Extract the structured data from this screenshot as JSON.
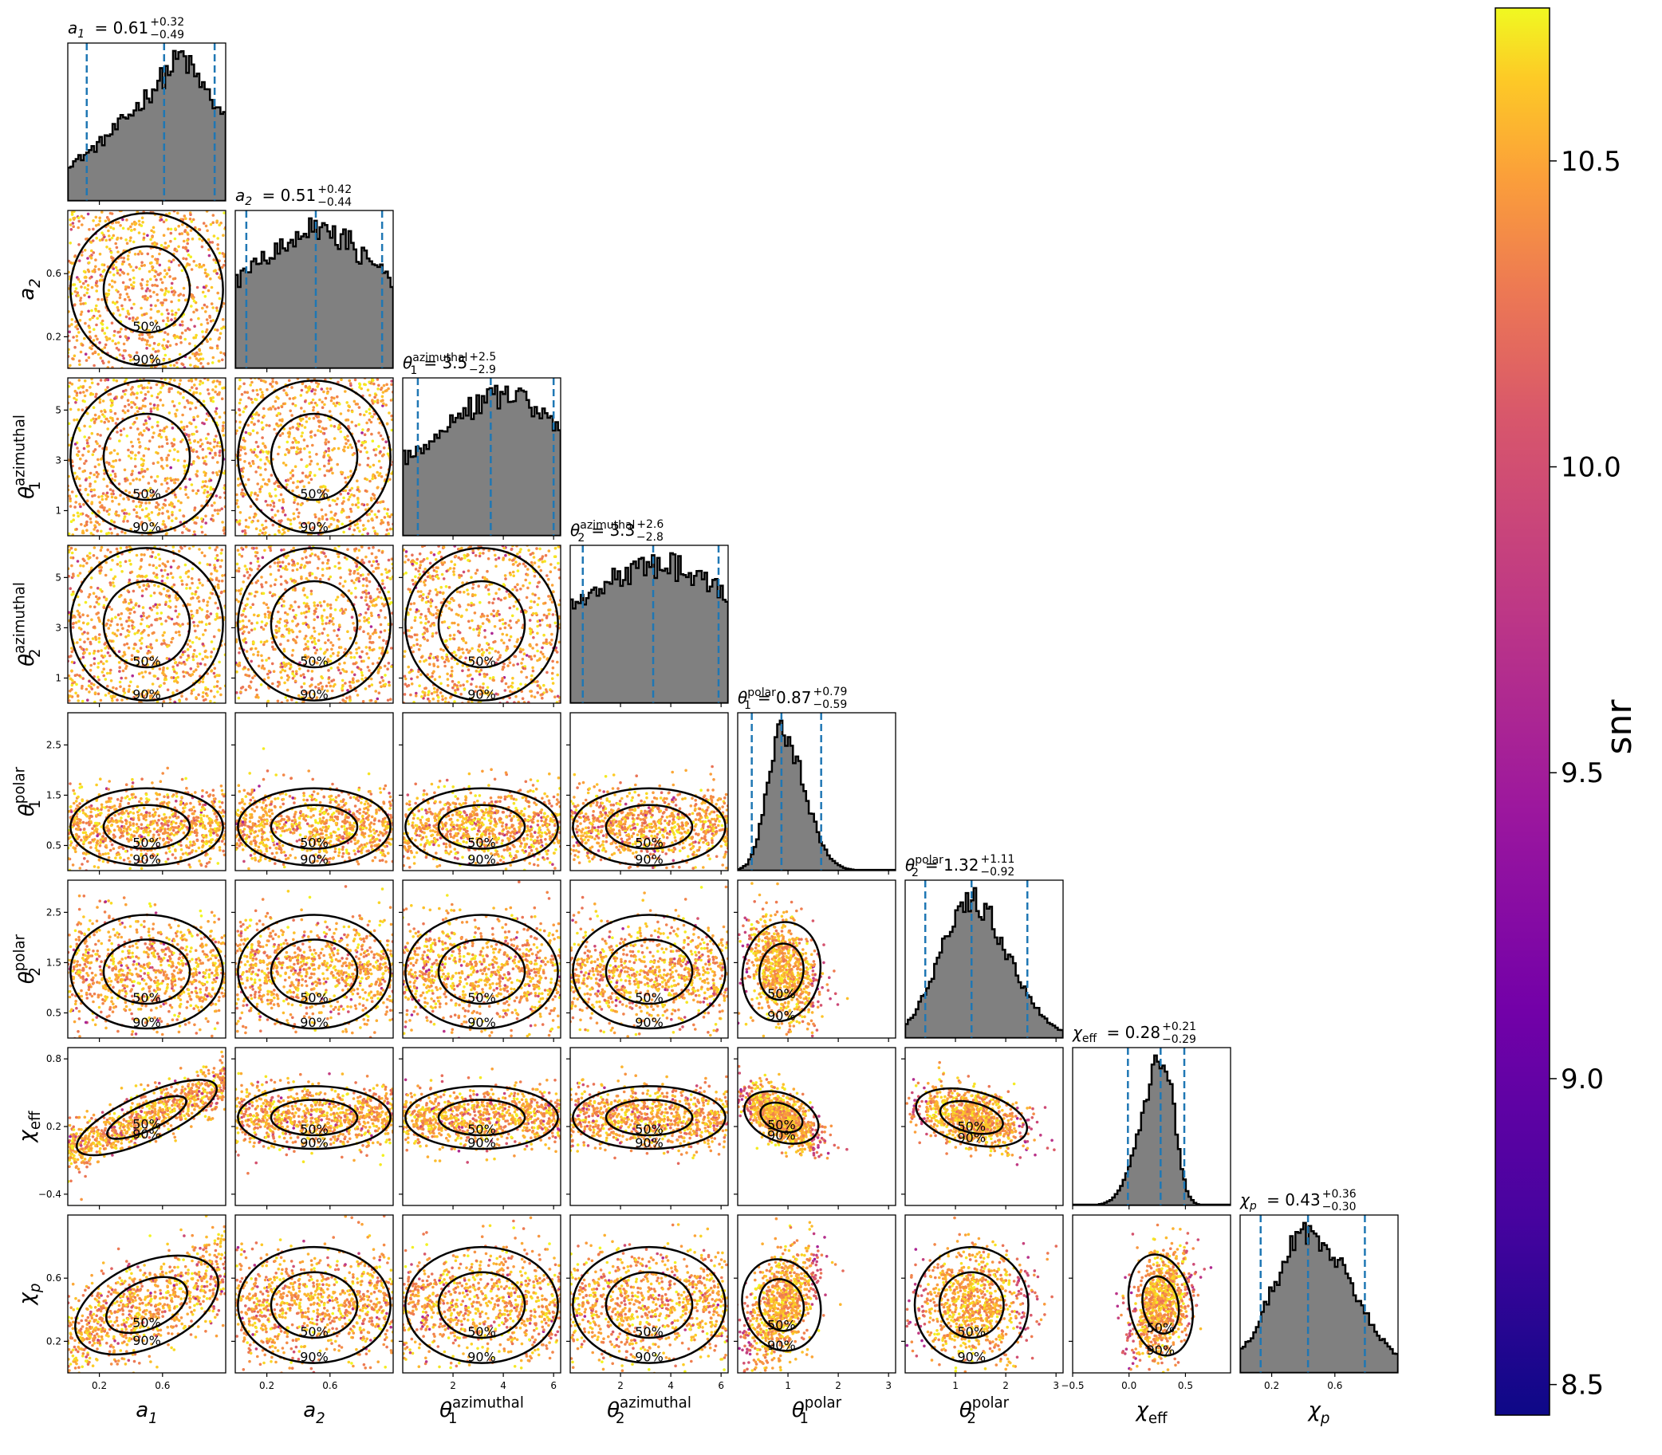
{
  "chart_data": {
    "type": "scatter",
    "variables": [
      {
        "key": "a1",
        "label": "a",
        "sub": "1",
        "sup": "",
        "median": "0.61",
        "plus": "+0.32",
        "minus": "−0.49",
        "range": [
          0.0,
          1.0
        ],
        "ticks": [
          {
            "v": 0.2,
            "t": "0.2"
          },
          {
            "v": 0.6,
            "t": "0.6"
          }
        ],
        "q": [
          0.12,
          0.61,
          0.93
        ],
        "dist": {
          "type": "ramp",
          "peak": 0.72,
          "low": 0.25
        }
      },
      {
        "key": "a2",
        "label": "a",
        "sub": "2",
        "sup": "",
        "median": "0.51",
        "plus": "+0.42",
        "minus": "−0.44",
        "range": [
          0.0,
          1.0
        ],
        "ticks": [
          {
            "v": 0.2,
            "t": "0.2"
          },
          {
            "v": 0.6,
            "t": "0.6"
          }
        ],
        "q": [
          0.07,
          0.51,
          0.93
        ],
        "dist": {
          "type": "plateau",
          "peak": 0.5,
          "low": 0.3
        }
      },
      {
        "key": "th1az",
        "label": "θ",
        "sub": "1",
        "sup": "azimuthal",
        "median": "3.5",
        "plus": "+2.5",
        "minus": "−2.9",
        "range": [
          0.0,
          6.28
        ],
        "ticks": [
          {
            "v": 2,
            "t": "2"
          },
          {
            "v": 4,
            "t": "4"
          },
          {
            "v": 6,
            "t": "6"
          }
        ],
        "q": [
          0.6,
          3.5,
          6.0
        ],
        "dist": {
          "type": "plateau",
          "peak": 4.0,
          "low": 0.4
        }
      },
      {
        "key": "th2az",
        "label": "θ",
        "sub": "2",
        "sup": "azimuthal",
        "median": "3.3",
        "plus": "+2.6",
        "minus": "−2.8",
        "range": [
          0.0,
          6.28
        ],
        "ticks": [
          {
            "v": 2,
            "t": "2"
          },
          {
            "v": 4,
            "t": "4"
          },
          {
            "v": 6,
            "t": "6"
          }
        ],
        "q": [
          0.5,
          3.3,
          5.9
        ],
        "dist": {
          "type": "plateau",
          "peak": 3.5,
          "low": 0.55
        }
      },
      {
        "key": "th1pol",
        "label": "θ",
        "sub": "1",
        "sup": "polar",
        "median": "0.87",
        "plus": "+0.79",
        "minus": "−0.59",
        "range": [
          0.0,
          3.14
        ],
        "ticks": [
          {
            "v": 1,
            "t": "1"
          },
          {
            "v": 2,
            "t": "2"
          },
          {
            "v": 3,
            "t": "3"
          }
        ],
        "q": [
          0.28,
          0.87,
          1.66
        ],
        "dist": {
          "type": "skew",
          "peak": 0.87,
          "wl": 0.28,
          "wr": 0.45
        }
      },
      {
        "key": "th2pol",
        "label": "θ",
        "sub": "2",
        "sup": "polar",
        "median": "1.32",
        "plus": "+1.11",
        "minus": "−0.92",
        "range": [
          0.0,
          3.14
        ],
        "ticks": [
          {
            "v": 1,
            "t": "1"
          },
          {
            "v": 2,
            "t": "2"
          },
          {
            "v": 3,
            "t": "3"
          }
        ],
        "q": [
          0.4,
          1.32,
          2.43
        ],
        "dist": {
          "type": "skew",
          "peak": 1.3,
          "wl": 0.6,
          "wr": 0.75
        }
      },
      {
        "key": "chieff",
        "label": "χ",
        "sub": "eff",
        "sup": "",
        "median": "0.28",
        "plus": "+0.21",
        "minus": "−0.29",
        "range": [
          -0.5,
          0.9
        ],
        "ticks": [
          {
            "v": -0.5,
            "t": "−0.5"
          },
          {
            "v": 0.0,
            "t": "0.0"
          },
          {
            "v": 0.5,
            "t": "0.5"
          }
        ],
        "q": [
          -0.01,
          0.28,
          0.49
        ],
        "dist": {
          "type": "skew",
          "peak": 0.3,
          "wl": 0.18,
          "wr": 0.1
        }
      },
      {
        "key": "chip",
        "label": "χ",
        "sub": "p",
        "sup": "",
        "median": "0.43",
        "plus": "+0.36",
        "minus": "−0.30",
        "range": [
          0.0,
          1.0
        ],
        "ticks": [
          {
            "v": 0.2,
            "t": "0.2"
          },
          {
            "v": 0.6,
            "t": "0.6"
          }
        ],
        "q": [
          0.13,
          0.43,
          0.79
        ],
        "dist": {
          "type": "skew",
          "peak": 0.43,
          "wl": 0.22,
          "wr": 0.28
        }
      }
    ],
    "y_ticks": {
      "a2": [
        {
          "v": 0.2,
          "t": "0.2"
        },
        {
          "v": 0.6,
          "t": "0.6"
        }
      ],
      "th1az": [
        {
          "v": 1,
          "t": "1"
        },
        {
          "v": 3,
          "t": "3"
        },
        {
          "v": 5,
          "t": "5"
        }
      ],
      "th2az": [
        {
          "v": 1,
          "t": "1"
        },
        {
          "v": 3,
          "t": "3"
        },
        {
          "v": 5,
          "t": "5"
        }
      ],
      "th1pol": [
        {
          "v": 0.5,
          "t": "0.5"
        },
        {
          "v": 1.5,
          "t": "1.5"
        },
        {
          "v": 2.5,
          "t": "2.5"
        }
      ],
      "th2pol": [
        {
          "v": 0.5,
          "t": "0.5"
        },
        {
          "v": 1.5,
          "t": "1.5"
        },
        {
          "v": 2.5,
          "t": "2.5"
        }
      ],
      "chieff": [
        {
          "v": -0.4,
          "t": "−0.4"
        },
        {
          "v": 0.2,
          "t": "0.2"
        },
        {
          "v": 0.8,
          "t": "0.8"
        }
      ],
      "chip": [
        {
          "v": 0.2,
          "t": "0.2"
        },
        {
          "v": 0.6,
          "t": "0.6"
        }
      ]
    },
    "contour_labels": [
      "50%",
      "90%"
    ],
    "colorbar": {
      "label": "snr",
      "range": [
        8.45,
        10.75
      ],
      "ticks": [
        {
          "v": 8.5,
          "t": "8.5"
        },
        {
          "v": 9.0,
          "t": "9.0"
        },
        {
          "v": 9.5,
          "t": "9.5"
        },
        {
          "v": 10.0,
          "t": "10.0"
        },
        {
          "v": 10.5,
          "t": "10.5"
        }
      ],
      "colormap": "plasma"
    },
    "colors": {
      "hist_fill": "#808080",
      "hist_edge": "#000000",
      "quantile_line": "#1f77b4",
      "contour": "#000000"
    }
  }
}
